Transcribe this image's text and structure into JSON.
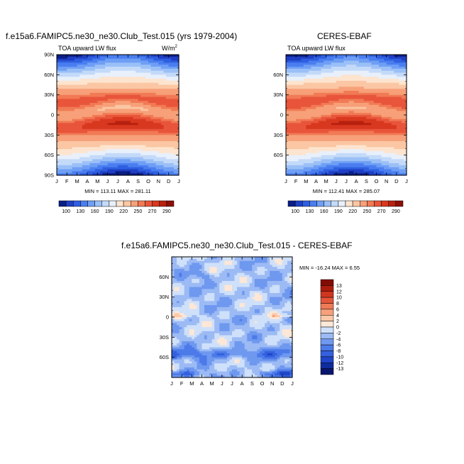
{
  "chart_data": [
    {
      "type": "heatmap",
      "title": "f.e15a6.FAMIPC5.ne30_ne30.Club_Test.015 (yrs 1979-2004)",
      "subtitle": "TOA upward LW flux",
      "units": "W/m",
      "units_sup": "2",
      "x_ticks": [
        "J",
        "F",
        "M",
        "A",
        "M",
        "J",
        "J",
        "A",
        "S",
        "O",
        "N",
        "D",
        "J"
      ],
      "y_ticks": [
        "90N",
        "60N",
        "30N",
        "0",
        "30S",
        "60S",
        "90S"
      ],
      "x_range": [
        0,
        12
      ],
      "y_range": [
        -90,
        90
      ],
      "min_max_text": "MIN = 113.11  MAX = 281.11",
      "colorbar_labels": [
        "100",
        "130",
        "160",
        "190",
        "220",
        "250",
        "270",
        "290"
      ],
      "colorbar_levels": [
        100,
        115,
        130,
        145,
        160,
        175,
        190,
        205,
        220,
        235,
        250,
        260,
        270,
        280,
        290
      ],
      "palette": [
        "#0a1e86",
        "#1f3fc4",
        "#2f5fe0",
        "#4a7ef0",
        "#6f9ff5",
        "#9bc0f7",
        "#c4daf9",
        "#e8f0fb",
        "#fde4cf",
        "#fbc6a3",
        "#f7a079",
        "#f17a55",
        "#e8553a",
        "#d8381f",
        "#b8210f",
        "#8e0f05"
      ]
    },
    {
      "type": "heatmap",
      "title": "CERES-EBAF",
      "subtitle": "TOA upward LW flux",
      "x_ticks": [
        "J",
        "F",
        "M",
        "A",
        "M",
        "J",
        "J",
        "A",
        "S",
        "O",
        "N",
        "D",
        "J"
      ],
      "y_ticks": [
        "60N",
        "30N",
        "0",
        "30S",
        "60S"
      ],
      "x_range": [
        0,
        12
      ],
      "y_range": [
        -90,
        90
      ],
      "min_max_text": "MIN = 112.41  MAX = 285.07",
      "colorbar_labels": [
        "100",
        "130",
        "160",
        "190",
        "220",
        "250",
        "270",
        "290"
      ],
      "colorbar_levels": [
        100,
        115,
        130,
        145,
        160,
        175,
        190,
        205,
        220,
        235,
        250,
        260,
        270,
        280,
        290
      ],
      "palette": [
        "#0a1e86",
        "#1f3fc4",
        "#2f5fe0",
        "#4a7ef0",
        "#6f9ff5",
        "#9bc0f7",
        "#c4daf9",
        "#e8f0fb",
        "#fde4cf",
        "#fbc6a3",
        "#f7a079",
        "#f17a55",
        "#e8553a",
        "#d8381f",
        "#b8210f",
        "#8e0f05"
      ]
    },
    {
      "type": "heatmap",
      "title": "f.e15a6.FAMIPC5.ne30_ne30.Club_Test.015 - CERES-EBAF",
      "x_ticks": [
        "J",
        "F",
        "M",
        "A",
        "M",
        "J",
        "J",
        "A",
        "S",
        "O",
        "N",
        "D",
        "J"
      ],
      "y_ticks": [
        "60N",
        "30N",
        "0",
        "30S",
        "60S"
      ],
      "x_range": [
        0,
        12
      ],
      "y_range": [
        -90,
        90
      ],
      "min_max_text": "MIN = -16.24  MAX =   6.55",
      "colorbar_labels": [
        "13",
        "12",
        "10",
        "8",
        "6",
        "4",
        "2",
        "0",
        "-2",
        "-4",
        "-6",
        "-8",
        "-10",
        "-12",
        "-13"
      ],
      "colorbar_levels": [
        -13,
        -12,
        -10,
        -8,
        -6,
        -4,
        -2,
        0,
        2,
        4,
        6,
        8,
        10,
        12,
        13
      ],
      "palette": [
        "#08166e",
        "#0f2c9e",
        "#1f45c8",
        "#3460de",
        "#4c7ae9",
        "#6f98ef",
        "#9cbaf4",
        "#cfe0fa",
        "#fde7d6",
        "#fbc8a8",
        "#f6a07c",
        "#ef7a56",
        "#e4553a",
        "#d0351f",
        "#ac1c0d",
        "#820c04"
      ]
    }
  ]
}
